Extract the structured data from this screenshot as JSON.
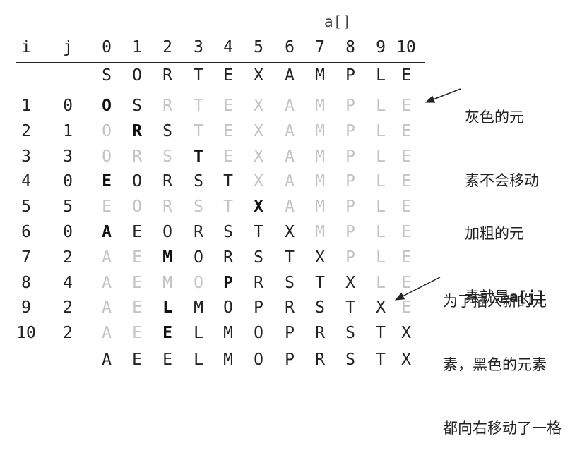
{
  "array_label": "a[]",
  "headers": [
    "i",
    "j",
    "0",
    "1",
    "2",
    "3",
    "4",
    "5",
    "6",
    "7",
    "8",
    "9",
    "10"
  ],
  "initial": [
    "S",
    "O",
    "R",
    "T",
    "E",
    "X",
    "A",
    "M",
    "P",
    "L",
    "E"
  ],
  "rows": [
    {
      "i": "1",
      "j": "0",
      "letters": [
        "O",
        "S",
        "R",
        "T",
        "E",
        "X",
        "A",
        "M",
        "P",
        "L",
        "E"
      ],
      "black_upto": 1,
      "gray_from": 2,
      "bold": 0
    },
    {
      "i": "2",
      "j": "1",
      "letters": [
        "O",
        "R",
        "S",
        "T",
        "E",
        "X",
        "A",
        "M",
        "P",
        "L",
        "E"
      ],
      "black_upto": 2,
      "gray_from": 3,
      "bold": 1
    },
    {
      "i": "3",
      "j": "3",
      "letters": [
        "O",
        "R",
        "S",
        "T",
        "E",
        "X",
        "A",
        "M",
        "P",
        "L",
        "E"
      ],
      "black_upto": 3,
      "gray_from": 4,
      "bold": 3
    },
    {
      "i": "4",
      "j": "0",
      "letters": [
        "E",
        "O",
        "R",
        "S",
        "T",
        "X",
        "A",
        "M",
        "P",
        "L",
        "E"
      ],
      "black_upto": 4,
      "gray_from": 5,
      "bold": 0
    },
    {
      "i": "5",
      "j": "5",
      "letters": [
        "E",
        "O",
        "R",
        "S",
        "T",
        "X",
        "A",
        "M",
        "P",
        "L",
        "E"
      ],
      "black_upto": 5,
      "gray_from": 6,
      "bold": 5
    },
    {
      "i": "6",
      "j": "0",
      "letters": [
        "A",
        "E",
        "O",
        "R",
        "S",
        "T",
        "X",
        "M",
        "P",
        "L",
        "E"
      ],
      "black_upto": 6,
      "gray_from": 7,
      "bold": 0
    },
    {
      "i": "7",
      "j": "2",
      "letters": [
        "A",
        "E",
        "M",
        "O",
        "R",
        "S",
        "T",
        "X",
        "P",
        "L",
        "E"
      ],
      "black_upto": 7,
      "gray_from": 8,
      "bold": 2
    },
    {
      "i": "8",
      "j": "4",
      "letters": [
        "A",
        "E",
        "M",
        "O",
        "P",
        "R",
        "S",
        "T",
        "X",
        "L",
        "E"
      ],
      "black_upto": 8,
      "gray_from": 9,
      "bold": 4
    },
    {
      "i": "9",
      "j": "2",
      "letters": [
        "A",
        "E",
        "L",
        "M",
        "O",
        "P",
        "R",
        "S",
        "T",
        "X",
        "E"
      ],
      "black_upto": 9,
      "gray_from": 10,
      "bold": 2
    },
    {
      "i": "10",
      "j": "2",
      "letters": [
        "A",
        "E",
        "E",
        "L",
        "M",
        "O",
        "P",
        "R",
        "S",
        "T",
        "X"
      ],
      "black_upto": 10,
      "gray_from": 11,
      "bold": 2
    }
  ],
  "final": [
    "A",
    "E",
    "E",
    "L",
    "M",
    "O",
    "P",
    "R",
    "S",
    "T",
    "X"
  ],
  "notes": {
    "gray_line1": "灰色的元",
    "gray_line2": "素不会移动",
    "bold_line1": "加粗的元",
    "bold_line2_text": "素就是",
    "bold_line2_code": "a[j]",
    "shift_line1": "为了插入新的元",
    "shift_line2": "素，黑色的元素",
    "shift_line3": "都向右移动了一格"
  },
  "colors": {
    "text": "#222222",
    "gray": "#c4c4c4"
  }
}
